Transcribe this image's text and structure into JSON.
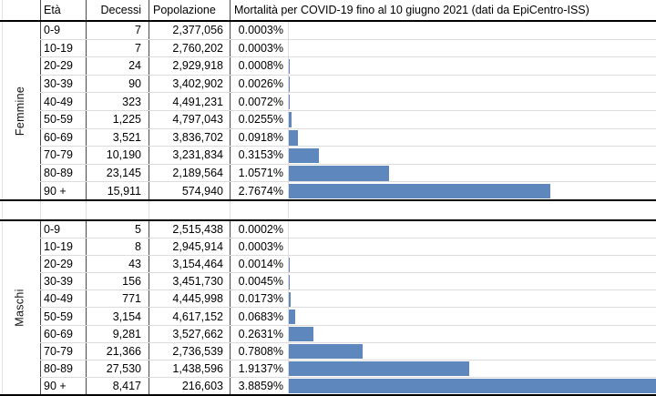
{
  "header": {
    "age_label": "Età",
    "deaths_label": "Decessi",
    "population_label": "Popolazione",
    "title": "Mortalità per COVID-19 fino al 10 giugno 2021 (dati da EpiCentro-ISS)"
  },
  "sections": [
    {
      "label": "Femmine",
      "rows": [
        {
          "age": "0-9",
          "deaths": "7",
          "population": "2,377,056",
          "mortality": "0.0003%",
          "value": 0.0003
        },
        {
          "age": "10-19",
          "deaths": "7",
          "population": "2,760,202",
          "mortality": "0.0003%",
          "value": 0.0003
        },
        {
          "age": "20-29",
          "deaths": "24",
          "population": "2,929,918",
          "mortality": "0.0008%",
          "value": 0.0008
        },
        {
          "age": "30-39",
          "deaths": "90",
          "population": "3,402,902",
          "mortality": "0.0026%",
          "value": 0.0026
        },
        {
          "age": "40-49",
          "deaths": "323",
          "population": "4,491,231",
          "mortality": "0.0072%",
          "value": 0.0072
        },
        {
          "age": "50-59",
          "deaths": "1,225",
          "population": "4,797,043",
          "mortality": "0.0255%",
          "value": 0.0255
        },
        {
          "age": "60-69",
          "deaths": "3,521",
          "population": "3,836,702",
          "mortality": "0.0918%",
          "value": 0.0918
        },
        {
          "age": "70-79",
          "deaths": "10,190",
          "population": "3,231,834",
          "mortality": "0.3153%",
          "value": 0.3153
        },
        {
          "age": "80-89",
          "deaths": "23,145",
          "population": "2,189,564",
          "mortality": "1.0571%",
          "value": 1.0571
        },
        {
          "age": "90 +",
          "deaths": "15,911",
          "population": "574,940",
          "mortality": "2.7674%",
          "value": 2.7674
        }
      ]
    },
    {
      "label": "Maschi",
      "rows": [
        {
          "age": "0-9",
          "deaths": "5",
          "population": "2,515,438",
          "mortality": "0.0002%",
          "value": 0.0002
        },
        {
          "age": "10-19",
          "deaths": "8",
          "population": "2,945,914",
          "mortality": "0.0003%",
          "value": 0.0003
        },
        {
          "age": "20-29",
          "deaths": "43",
          "population": "3,154,464",
          "mortality": "0.0014%",
          "value": 0.0014
        },
        {
          "age": "30-39",
          "deaths": "156",
          "population": "3,451,730",
          "mortality": "0.0045%",
          "value": 0.0045
        },
        {
          "age": "40-49",
          "deaths": "771",
          "population": "4,445,998",
          "mortality": "0.0173%",
          "value": 0.0173
        },
        {
          "age": "50-59",
          "deaths": "3,154",
          "population": "4,617,152",
          "mortality": "0.0683%",
          "value": 0.0683
        },
        {
          "age": "60-69",
          "deaths": "9,281",
          "population": "3,527,662",
          "mortality": "0.2631%",
          "value": 0.2631
        },
        {
          "age": "70-79",
          "deaths": "21,366",
          "population": "2,736,539",
          "mortality": "0.7808%",
          "value": 0.7808
        },
        {
          "age": "80-89",
          "deaths": "27,530",
          "population": "1,438,596",
          "mortality": "1.9137%",
          "value": 1.9137
        },
        {
          "age": "90 +",
          "deaths": "8,417",
          "population": "216,603",
          "mortality": "3.8859%",
          "value": 3.8859
        }
      ]
    }
  ],
  "chart_data": {
    "type": "bar",
    "orientation": "horizontal",
    "title": "Mortalità per COVID-19 fino al 10 giugno 2021 (dati da EpiCentro-ISS)",
    "categories": [
      "0-9",
      "10-19",
      "20-29",
      "30-39",
      "40-49",
      "50-59",
      "60-69",
      "70-79",
      "80-89",
      "90 +"
    ],
    "series": [
      {
        "name": "Femmine",
        "values": [
          0.0003,
          0.0003,
          0.0008,
          0.0026,
          0.0072,
          0.0255,
          0.0918,
          0.3153,
          1.0571,
          2.7674
        ]
      },
      {
        "name": "Maschi",
        "values": [
          0.0002,
          0.0003,
          0.0014,
          0.0045,
          0.0173,
          0.0683,
          0.2631,
          0.7808,
          1.9137,
          3.8859
        ]
      }
    ],
    "unit": "%",
    "xlim": [
      0,
      3.8859
    ],
    "grid": false,
    "legend_position": "none"
  },
  "colors": {
    "bar": "#5e87bd",
    "grid_light": "#dcdcdc",
    "border_dark": "#4a4a4a",
    "section_border": "#000000"
  }
}
